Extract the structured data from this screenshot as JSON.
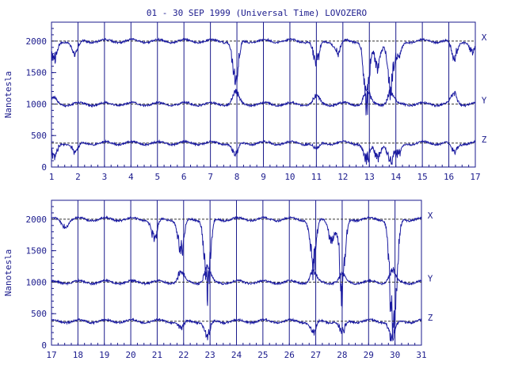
{
  "title": "01 - 30 SEP 1999 (Universal Time) LOVOZERO",
  "colors": {
    "trace": "#1a1aa0",
    "axis": "#1a1a8c",
    "ref": "#333333"
  },
  "chart_data": [
    {
      "type": "line",
      "ylabel": "Nanotesla",
      "xlim": [
        1,
        17
      ],
      "ylim": [
        0,
        2300
      ],
      "x_ticks": [
        "1",
        "2",
        "3",
        "4",
        "5",
        "6",
        "7",
        "8",
        "9",
        "10",
        "11",
        "12",
        "13",
        "14",
        "15",
        "16",
        "17"
      ],
      "y_ticks": [
        0,
        500,
        1000,
        1500,
        2000
      ],
      "grid": "vertical-day-lines",
      "series": [
        {
          "name": "X",
          "baseline": 2000,
          "disturbances": [
            [
              1.1,
              -400
            ],
            [
              1.9,
              -300
            ],
            [
              7.95,
              -800
            ],
            [
              11.0,
              -450
            ],
            [
              11.8,
              -250
            ],
            [
              12.9,
              -1200
            ],
            [
              13.3,
              -500
            ],
            [
              13.8,
              -900
            ],
            [
              14.1,
              -300
            ],
            [
              16.2,
              -350
            ],
            [
              16.9,
              -250
            ]
          ]
        },
        {
          "name": "Y",
          "baseline": 1000,
          "disturbances": [
            [
              1.1,
              100
            ],
            [
              7.95,
              250
            ],
            [
              11.0,
              150
            ],
            [
              12.9,
              300
            ],
            [
              13.8,
              250
            ],
            [
              16.2,
              200
            ]
          ]
        },
        {
          "name": "Z",
          "baseline": 380,
          "disturbances": [
            [
              1.1,
              -300
            ],
            [
              1.9,
              -200
            ],
            [
              7.95,
              -250
            ],
            [
              11.0,
              -150
            ],
            [
              12.9,
              -350
            ],
            [
              13.3,
              -300
            ],
            [
              13.8,
              -380
            ],
            [
              14.1,
              -250
            ],
            [
              16.2,
              -200
            ]
          ]
        }
      ]
    },
    {
      "type": "line",
      "ylabel": "Nanotesla",
      "xlim": [
        17,
        31
      ],
      "ylim": [
        0,
        2300
      ],
      "x_ticks": [
        "17",
        "18",
        "19",
        "20",
        "21",
        "22",
        "23",
        "24",
        "25",
        "26",
        "27",
        "28",
        "29",
        "30",
        "31"
      ],
      "y_ticks": [
        0,
        500,
        1000,
        1500,
        2000
      ],
      "grid": "vertical-day-lines",
      "series": [
        {
          "name": "X",
          "baseline": 2000,
          "disturbances": [
            [
              17.5,
              -150
            ],
            [
              20.9,
              -400
            ],
            [
              21.9,
              -700
            ],
            [
              22.9,
              -1500
            ],
            [
              26.9,
              -900
            ],
            [
              27.6,
              -400
            ],
            [
              28.0,
              -1300
            ],
            [
              29.9,
              -1600
            ],
            [
              30.0,
              -1000
            ]
          ]
        },
        {
          "name": "Y",
          "baseline": 1000,
          "disturbances": [
            [
              21.9,
              200
            ],
            [
              22.9,
              300
            ],
            [
              26.9,
              200
            ],
            [
              28.0,
              150
            ],
            [
              29.9,
              250
            ]
          ]
        },
        {
          "name": "Z",
          "baseline": 380,
          "disturbances": [
            [
              21.9,
              -150
            ],
            [
              22.9,
              -300
            ],
            [
              26.9,
              -250
            ],
            [
              28.0,
              -250
            ],
            [
              29.9,
              -380
            ]
          ]
        }
      ]
    }
  ]
}
